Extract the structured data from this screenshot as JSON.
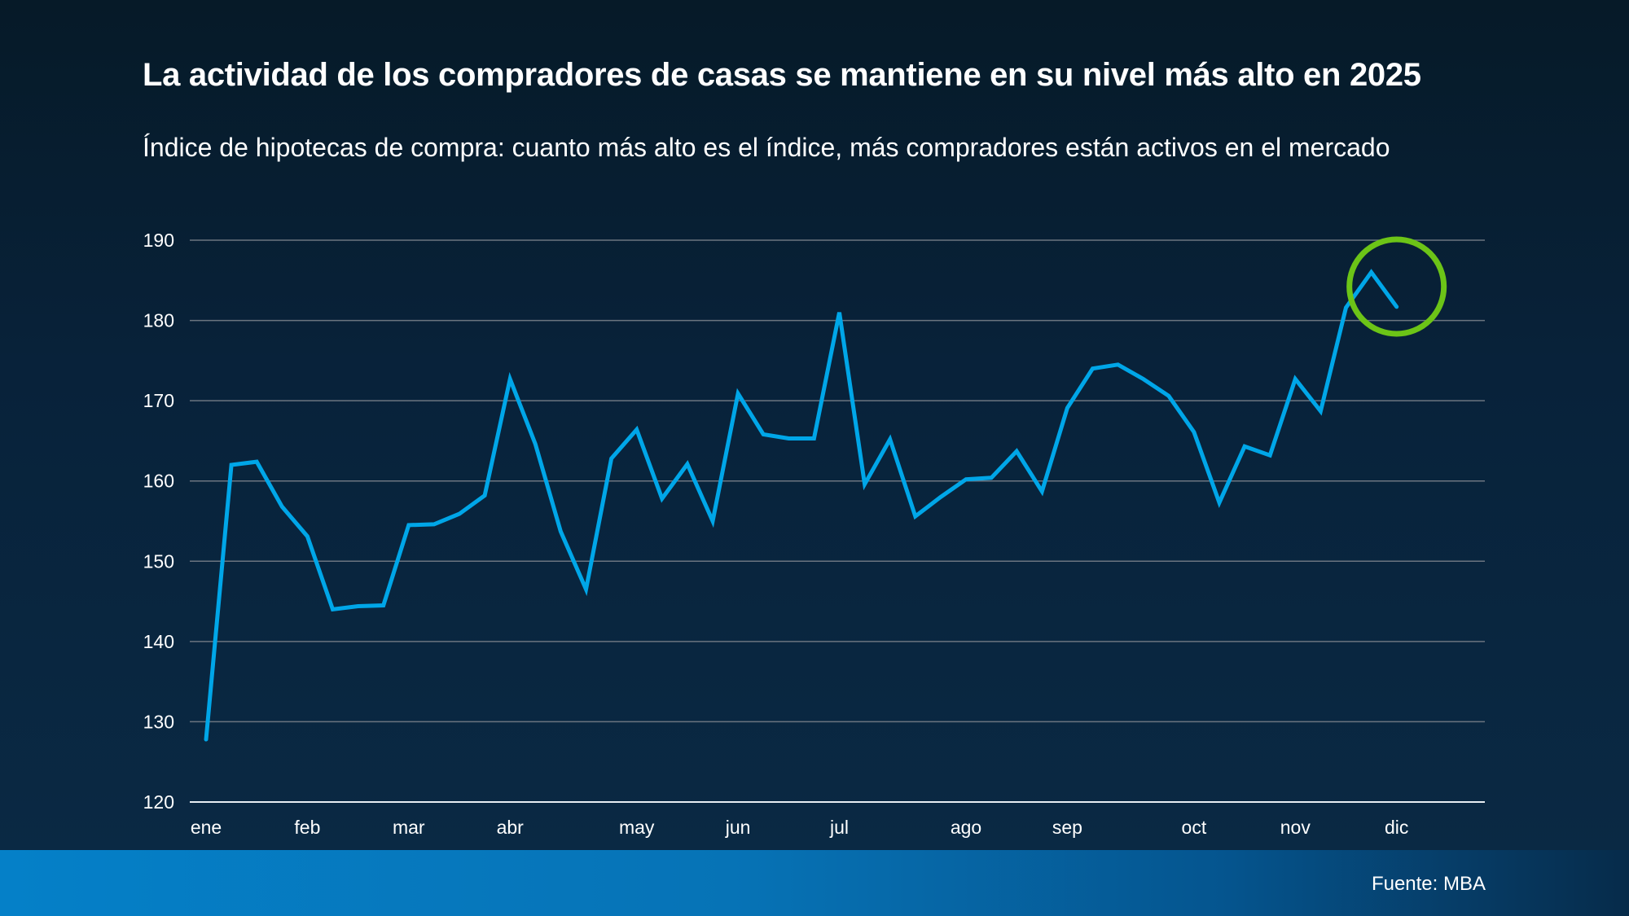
{
  "header": {
    "title": "La actividad de los compradores de casas se mantiene en su nivel más alto en 2025",
    "subtitle": "Índice de hipotecas de compra: cuanto más alto es el índice, más compradores están activos en el mercado"
  },
  "footer": {
    "source": "Fuente: MBA"
  },
  "colors": {
    "line": "#00a6e8",
    "highlight": "#6cc417",
    "grid": "#6b7580"
  },
  "chart_data": {
    "type": "line",
    "title": "La actividad de los compradores de casas se mantiene en su nivel más alto en 2025",
    "subtitle": "Índice de hipotecas de compra: cuanto más alto es el índice, más compradores están activos en el mercado",
    "xlabel": "",
    "ylabel": "",
    "ylim": [
      120,
      190
    ],
    "yticks": [
      120,
      130,
      140,
      150,
      160,
      170,
      180,
      190
    ],
    "grid": true,
    "legend": "none",
    "x_month_labels": [
      {
        "label": "ene",
        "week": 0
      },
      {
        "label": "feb",
        "week": 4
      },
      {
        "label": "mar",
        "week": 8
      },
      {
        "label": "abr",
        "week": 12
      },
      {
        "label": "may",
        "week": 17
      },
      {
        "label": "jun",
        "week": 21
      },
      {
        "label": "jul",
        "week": 25
      },
      {
        "label": "ago",
        "week": 30
      },
      {
        "label": "sep",
        "week": 34
      },
      {
        "label": "oct",
        "week": 39
      },
      {
        "label": "nov",
        "week": 43
      },
      {
        "label": "dic",
        "week": 47
      }
    ],
    "series": [
      {
        "name": "Índice de hipotecas de compra",
        "values": [
          127.8,
          162.0,
          162.4,
          156.8,
          153.1,
          144.0,
          144.4,
          144.5,
          154.5,
          154.6,
          155.9,
          158.2,
          172.7,
          164.6,
          153.7,
          146.5,
          162.8,
          166.4,
          157.8,
          162.1,
          155.0,
          170.9,
          165.8,
          165.3,
          165.3,
          181.0,
          159.6,
          165.2,
          155.6,
          158.0,
          160.2,
          160.4,
          163.7,
          158.7,
          169.1,
          174.0,
          174.5,
          172.7,
          170.6,
          166.1,
          157.3,
          164.3,
          163.2,
          172.7,
          168.7,
          181.6,
          186.0,
          181.7
        ]
      }
    ],
    "annotations": [
      {
        "type": "circle",
        "around_week": 47,
        "note": "highlight of latest peak"
      }
    ]
  }
}
